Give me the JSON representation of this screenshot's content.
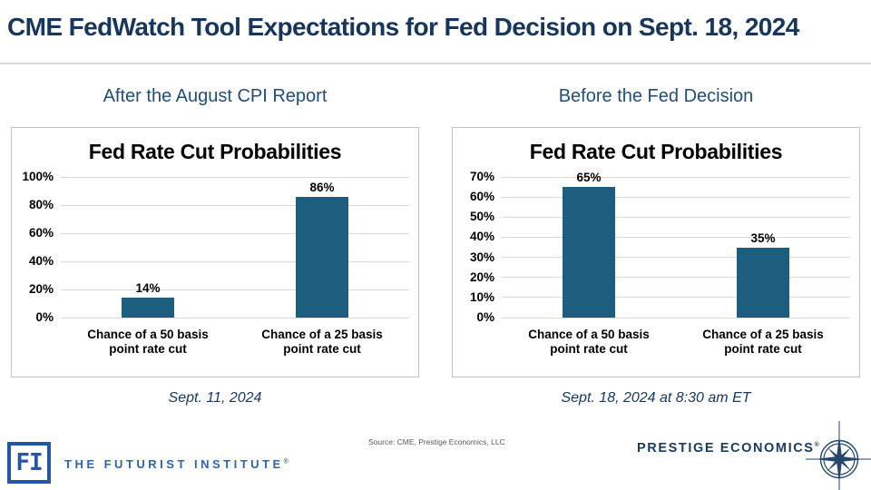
{
  "title": "CME FedWatch Tool Expectations for Fed Decision on Sept. 18, 2024",
  "panels": [
    {
      "heading": "After the August CPI Report",
      "caption": "Sept. 11, 2024"
    },
    {
      "heading": "Before the Fed Decision",
      "caption": "Sept. 18, 2024 at 8:30 am ET"
    }
  ],
  "chart_data": [
    {
      "type": "bar",
      "title": "Fed Rate Cut Probabilities",
      "categories": [
        "Chance of a 50 basis point rate cut",
        "Chance of a 25 basis point rate cut"
      ],
      "values": [
        14,
        86
      ],
      "data_labels": [
        "14%",
        "86%"
      ],
      "xlabel": "",
      "ylabel": "",
      "ylim": [
        0,
        100
      ],
      "yticks": [
        "0%",
        "20%",
        "40%",
        "60%",
        "80%",
        "100%"
      ],
      "grid": true,
      "legend": "none",
      "bar_color": "#1D5E7E"
    },
    {
      "type": "bar",
      "title": "Fed Rate Cut Probabilities",
      "categories": [
        "Chance of a 50 basis point rate cut",
        "Chance of a 25 basis point rate cut"
      ],
      "values": [
        65,
        35
      ],
      "data_labels": [
        "65%",
        "35%"
      ],
      "xlabel": "",
      "ylabel": "",
      "ylim": [
        0,
        70
      ],
      "yticks": [
        "0%",
        "10%",
        "20%",
        "30%",
        "40%",
        "50%",
        "60%",
        "70%"
      ],
      "grid": true,
      "legend": "none",
      "bar_color": "#1D5E7E"
    }
  ],
  "footer": {
    "source": "Source: CME, Prestige Economics, LLC",
    "futurist_logo_text": "FI",
    "futurist_name": "THE FUTURIST INSTITUTE",
    "futurist_reg": "®",
    "prestige_name": "PRESTIGE ECONOMICS",
    "prestige_reg": "®",
    "compass_icon": "compass-rose-icon"
  },
  "colors": {
    "title_navy": "#17365D",
    "heading_blue": "#1F4E79",
    "bar_teal": "#1D5E7E",
    "futurist_blue": "#2D64B5",
    "prestige_navy": "#1B3A5C",
    "source_gray": "#595959"
  }
}
